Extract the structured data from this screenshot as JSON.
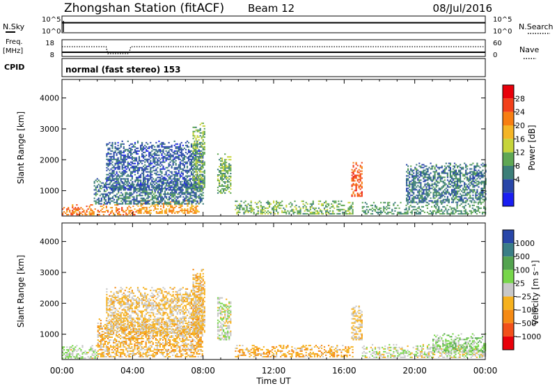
{
  "header": {
    "station": "Zhongshan Station (fitACF)",
    "beam": "Beam 12",
    "date": "08/Jul/2016"
  },
  "strips": {
    "nsky_label": "N.Sky",
    "nsky_ticks": [
      "10^5",
      "10^0"
    ],
    "nsearch_label": "N.Search",
    "nsearch_ticks": [
      "10^5",
      "10^0"
    ],
    "freq_label": "Freq.",
    "freq_unit": "[MHz]",
    "freq_ticks": [
      "18",
      "8"
    ],
    "nave_label": "Nave",
    "nave_ticks": [
      "60",
      "0"
    ],
    "cpid_label": "CPID",
    "cpid_text": "normal (fast stereo) 153"
  },
  "panels": {
    "ylabel": "Slant Range [km]",
    "yticks": [
      "4000",
      "3000",
      "2000",
      "1000"
    ],
    "xticks": [
      "00:00",
      "04:00",
      "08:00",
      "12:00",
      "16:00",
      "20:00",
      "00:00"
    ],
    "xlabel": "Time UT"
  },
  "colorbars": {
    "power": {
      "label": "Power [dB]",
      "ticks": [
        "28",
        "24",
        "20",
        "16",
        "12",
        "8",
        "4"
      ],
      "colors": [
        "#e8000a",
        "#f2401a",
        "#f77e12",
        "#f4b526",
        "#c6d43a",
        "#5fa754",
        "#3c7e78",
        "#2846a8",
        "#1a1ef2"
      ]
    },
    "velocity": {
      "label": "Velocity [m s⁻¹]",
      "ticks": [
        "1000",
        "500",
        "100",
        "25",
        "−25",
        "−100",
        "−500",
        "−1000"
      ],
      "colors": [
        "#2846a8",
        "#3a7e86",
        "#53a34f",
        "#77d64a",
        "#c8c8c8",
        "#f6b11e",
        "#f58a14",
        "#f2501a",
        "#e8000a"
      ]
    }
  },
  "chart_data": [
    {
      "type": "line",
      "title": "N.Sky / N.Search",
      "x_range": [
        "00:00",
        "24:00"
      ],
      "yscale": "log",
      "ylim": [
        1,
        100000
      ],
      "series": [
        {
          "name": "N.Sky",
          "style": "solid",
          "x": [
            0,
            24
          ],
          "values": [
            1000,
            1000
          ]
        },
        {
          "name": "N.Search",
          "style": "dotted",
          "x": [
            0,
            24
          ],
          "values": [
            1000,
            1000
          ]
        }
      ]
    },
    {
      "type": "line",
      "title": "Freq. / Nave",
      "x_range": [
        "00:00",
        "24:00"
      ],
      "series": [
        {
          "name": "Freq.",
          "unit": "MHz",
          "style": "solid",
          "ylim": [
            8,
            18
          ],
          "x": [
            0,
            24
          ],
          "values": [
            8,
            8
          ]
        },
        {
          "name": "Nave",
          "style": "dotted",
          "ylim": [
            0,
            60
          ],
          "x": [
            0,
            2.5,
            2.6,
            3.8,
            3.9,
            24
          ],
          "values": [
            35,
            35,
            10,
            10,
            35,
            35
          ]
        }
      ]
    },
    {
      "type": "heatmap",
      "variable": "Power",
      "unit": "dB",
      "x_range_hours": [
        0,
        24
      ],
      "ylim": [
        180,
        4600
      ],
      "clim": [
        2,
        32
      ],
      "ylabel": "Slant Range [km]",
      "xlabel": "Time UT",
      "regions": [
        {
          "t": [
            0,
            4.2
          ],
          "r": [
            200,
            550
          ],
          "level": 24
        },
        {
          "t": [
            4.2,
            7.8
          ],
          "r": [
            250,
            700
          ],
          "level": 22
        },
        {
          "t": [
            1.8,
            8.0
          ],
          "r": [
            550,
            1400
          ],
          "level": 10
        },
        {
          "t": [
            2.5,
            8.0
          ],
          "r": [
            1000,
            2600
          ],
          "level": 8
        },
        {
          "t": [
            7.4,
            8.1
          ],
          "r": [
            1000,
            3200
          ],
          "level": 14
        },
        {
          "t": [
            8.8,
            9.6
          ],
          "r": [
            900,
            2200
          ],
          "level": 14
        },
        {
          "t": [
            9.8,
            16.5
          ],
          "r": [
            230,
            650
          ],
          "level": 14
        },
        {
          "t": [
            16.4,
            17.0
          ],
          "r": [
            800,
            1900
          ],
          "level": 26
        },
        {
          "t": [
            17.0,
            24.0
          ],
          "r": [
            230,
            600
          ],
          "level": 12
        },
        {
          "t": [
            19.5,
            24.0
          ],
          "r": [
            600,
            1900
          ],
          "level": 10
        }
      ]
    },
    {
      "type": "heatmap",
      "variable": "Velocity",
      "unit": "m s^-1",
      "x_range_hours": [
        0,
        24
      ],
      "ylim": [
        180,
        4600
      ],
      "clim": [
        -1500,
        1500
      ],
      "ylabel": "Slant Range [km]",
      "xlabel": "Time UT",
      "regions": [
        {
          "t": [
            0,
            2.0
          ],
          "r": [
            200,
            650
          ],
          "level": 150
        },
        {
          "t": [
            2.0,
            8.0
          ],
          "r": [
            250,
            1500
          ],
          "level": -300
        },
        {
          "t": [
            2.5,
            8.0
          ],
          "r": [
            1000,
            2500
          ],
          "level": -200
        },
        {
          "t": [
            7.4,
            8.1
          ],
          "r": [
            1000,
            3100
          ],
          "level": -300
        },
        {
          "t": [
            8.8,
            9.6
          ],
          "r": [
            800,
            2200
          ],
          "level": 60
        },
        {
          "t": [
            9.8,
            16.5
          ],
          "r": [
            250,
            650
          ],
          "level": -400
        },
        {
          "t": [
            16.4,
            17.0
          ],
          "r": [
            800,
            1900
          ],
          "level": -200
        },
        {
          "t": [
            17.0,
            24.0
          ],
          "r": [
            230,
            650
          ],
          "level": 40
        },
        {
          "t": [
            21.0,
            24.0
          ],
          "r": [
            400,
            1000
          ],
          "level": 300
        }
      ]
    }
  ]
}
